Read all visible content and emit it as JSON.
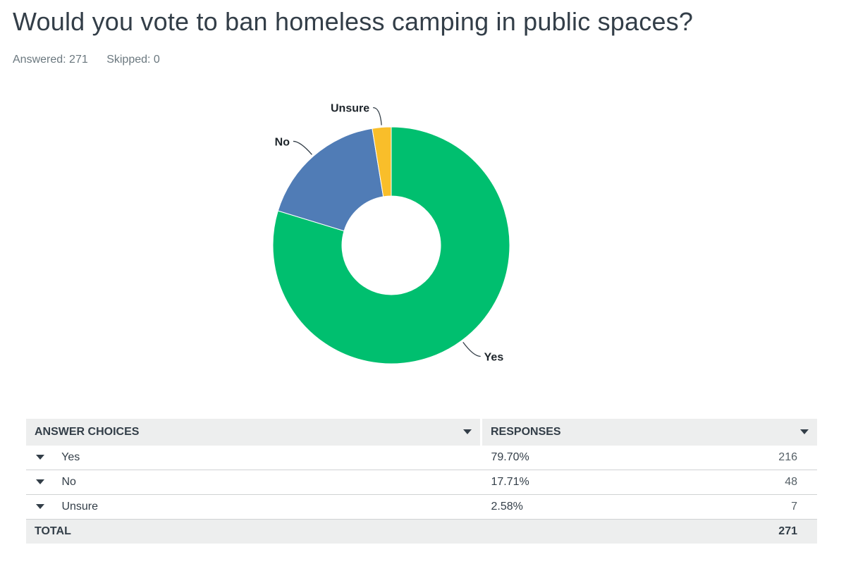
{
  "question": {
    "title": "Would you vote to ban homeless camping in public spaces?",
    "answered_label": "Answered: 271",
    "skipped_label": "Skipped: 0"
  },
  "colors": {
    "yes": "#00bf6f",
    "no": "#507cb6",
    "unsure": "#f9be2a",
    "leader": "#333e48"
  },
  "chart_data": {
    "type": "pie",
    "donut": true,
    "categories": [
      "Yes",
      "No",
      "Unsure"
    ],
    "values": [
      79.7,
      17.71,
      2.58
    ],
    "counts": [
      216,
      48,
      7
    ]
  },
  "table": {
    "headers": {
      "choices": "ANSWER CHOICES",
      "responses": "RESPONSES"
    },
    "rows": [
      {
        "choice": "Yes",
        "percent": "79.70%",
        "count": "216"
      },
      {
        "choice": "No",
        "percent": "17.71%",
        "count": "48"
      },
      {
        "choice": "Unsure",
        "percent": "2.58%",
        "count": "7"
      }
    ],
    "total_label": "TOTAL",
    "total_count": "271"
  }
}
